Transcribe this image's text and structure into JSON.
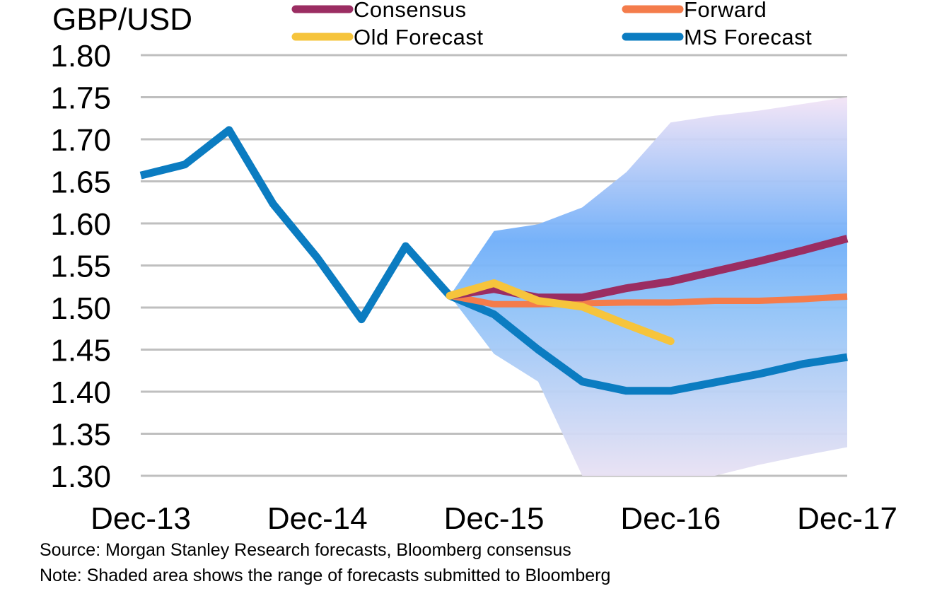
{
  "chart_data": {
    "type": "line",
    "title": "GBP/USD",
    "xlabel": "",
    "ylabel": "GBP/USD",
    "ylim": [
      1.3,
      1.8
    ],
    "yticks": [
      "1.80",
      "1.75",
      "1.70",
      "1.65",
      "1.60",
      "1.55",
      "1.50",
      "1.45",
      "1.40",
      "1.35",
      "1.30"
    ],
    "ytick_values": [
      1.8,
      1.75,
      1.7,
      1.65,
      1.6,
      1.55,
      1.5,
      1.45,
      1.4,
      1.35,
      1.3
    ],
    "x_periods": 16,
    "xticks": [
      "Dec-13",
      "Dec-14",
      "Dec-15",
      "Dec-16",
      "Dec-17"
    ],
    "xtick_index": [
      0,
      4,
      8,
      12,
      16
    ],
    "grid": true,
    "legend_position": "top",
    "legend": [
      {
        "name": "Consensus",
        "color": "#9B2D62"
      },
      {
        "name": "Forward",
        "color": "#F47C4B"
      },
      {
        "name": "Old Forecast",
        "color": "#F6C43C"
      },
      {
        "name": "MS Forecast",
        "color": "#0B7CC1"
      }
    ],
    "band": {
      "name": "Range of forecasts submitted to Bloomberg",
      "start_index": 7,
      "upper": [
        1.514,
        1.591,
        1.599,
        1.619,
        1.661,
        1.72,
        1.728,
        1.734,
        1.742,
        1.75
      ],
      "lower": [
        1.514,
        1.445,
        1.412,
        1.3,
        1.3,
        1.3,
        1.3,
        1.313,
        1.324,
        1.334
      ]
    },
    "series": [
      {
        "name": "MS Forecast",
        "color": "#0B7CC1",
        "start_index": 0,
        "values": [
          1.657,
          1.67,
          1.711,
          1.623,
          1.559,
          1.486,
          1.573,
          1.514,
          1.492,
          1.45,
          1.412,
          1.401,
          1.401,
          1.411,
          1.421,
          1.433,
          1.441
        ]
      },
      {
        "name": "Consensus",
        "color": "#9B2D62",
        "start_index": 7,
        "values": [
          1.514,
          1.522,
          1.512,
          1.512,
          1.523,
          1.531,
          1.543,
          1.555,
          1.568,
          1.582
        ]
      },
      {
        "name": "Forward",
        "color": "#F47C4B",
        "start_index": 7,
        "values": [
          1.514,
          1.504,
          1.504,
          1.505,
          1.506,
          1.506,
          1.508,
          1.508,
          1.51,
          1.513
        ]
      },
      {
        "name": "Old Forecast",
        "color": "#F6C43C",
        "start_index": 7,
        "values": [
          1.514,
          1.529,
          1.508,
          1.501,
          1.48,
          1.46
        ]
      }
    ]
  },
  "notes": {
    "source": "Source: Morgan Stanley Research forecasts, Bloomberg consensus",
    "note": "Note: Shaded area shows the range of forecasts submitted to Bloomberg"
  }
}
